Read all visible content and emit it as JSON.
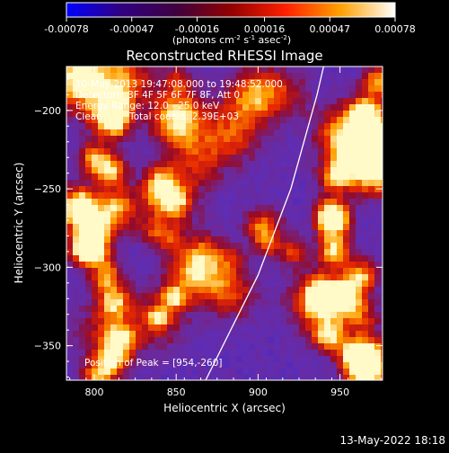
{
  "colorbar": {
    "ticks": [
      "-0.00078",
      "-0.00047",
      "-0.00016",
      "0.00016",
      "0.00047",
      "0.00078"
    ],
    "tick_values": [
      -0.00078,
      -0.00047,
      -0.00016,
      0.00016,
      0.00047,
      0.00078
    ],
    "unit_prefix": "(photons cm",
    "unit_exp1": "-2",
    "unit_mid1": " s",
    "unit_exp2": "-1",
    "unit_mid2": " asec",
    "unit_exp3": "-2",
    "unit_suffix": ")",
    "colormap": [
      "#0000ff",
      "#300080",
      "#400040",
      "#900000",
      "#ff2000",
      "#ffa000",
      "#ffffff"
    ]
  },
  "chart_data": {
    "type": "heatmap",
    "title": "Reconstructed RHESSI Image",
    "xlabel": "Heliocentric X (arcsec)",
    "ylabel": "Heliocentric Y (arcsec)",
    "xlim": [
      783,
      976
    ],
    "ylim": [
      -372,
      -172
    ],
    "xticks": [
      800,
      850,
      900,
      950
    ],
    "yticks": [
      -200,
      -250,
      -300,
      -350
    ],
    "limb_curve": [
      [
        868,
        -372
      ],
      [
        900,
        -305
      ],
      [
        920,
        -250
      ],
      [
        936,
        -190
      ],
      [
        940,
        -172
      ]
    ],
    "peak": [
      954,
      -260
    ],
    "annotations": {
      "time_range": "10-May-2013 19:47:08.000 to 19:48:52.000",
      "detectors": "Detectors: 3F 4F 5F 6F 7F 8F, Att 0",
      "energy_range": "Energy Range: 12.0 - 25.0 keV",
      "clean": "Clean",
      "total_counts": "Total counts: 2.39E+03",
      "peak_text": "Position of Peak = [954,-260]"
    }
  },
  "footer": {
    "timestamp": "13-May-2022 18:18"
  }
}
